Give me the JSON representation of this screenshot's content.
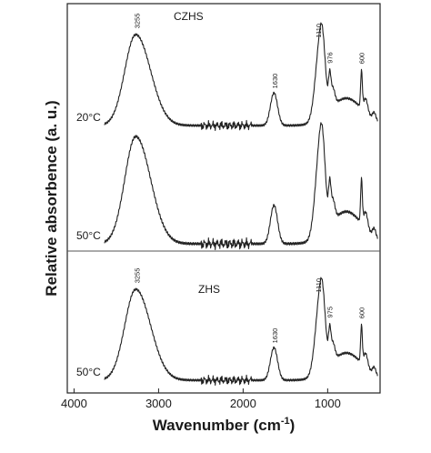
{
  "chart_data": {
    "type": "line",
    "xlabel_base": "Wavenumber (cm",
    "xlabel_sup": "-1",
    "xlabel_close": ")",
    "ylabel": "Relative absorbence (a. u.)",
    "xlim": [
      4080,
      380
    ],
    "x_ticks": [
      {
        "value": 4000,
        "label": "4000"
      },
      {
        "value": 3000,
        "label": "3000"
      },
      {
        "value": 2000,
        "label": "2000"
      },
      {
        "value": 1000,
        "label": "1000"
      }
    ],
    "panels": [
      {
        "label": "CZHS"
      },
      {
        "label": "ZHS"
      }
    ],
    "series": [
      {
        "name": "20°C",
        "panel": 0,
        "peaks": [
          {
            "x": 3255,
            "label": "3255"
          },
          {
            "x": 1630,
            "label": "1630"
          },
          {
            "x": 1110,
            "label": "1110"
          },
          {
            "x": 976,
            "label": "976"
          },
          {
            "x": 600,
            "label": "600"
          }
        ]
      },
      {
        "name": "50°C",
        "panel": 0,
        "peaks": []
      },
      {
        "name": "50°C",
        "panel": 1,
        "peaks": [
          {
            "x": 3255,
            "label": "3255"
          },
          {
            "x": 1630,
            "label": "1630"
          },
          {
            "x": 1110,
            "label": "1110"
          },
          {
            "x": 975,
            "label": "975"
          },
          {
            "x": 600,
            "label": "600"
          }
        ]
      }
    ]
  }
}
